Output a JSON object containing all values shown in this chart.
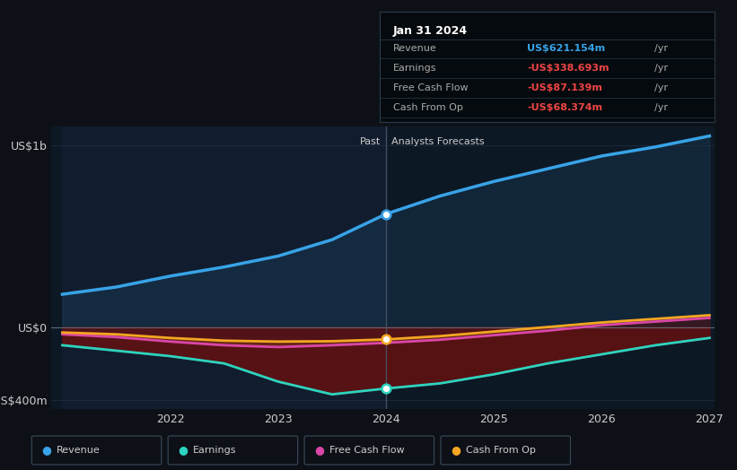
{
  "bg_color": "#0d1117",
  "years": [
    2021.0,
    2021.5,
    2022.0,
    2022.5,
    2023.0,
    2023.5,
    2024.0,
    2024.5,
    2025.0,
    2025.5,
    2026.0,
    2026.5,
    2027.0
  ],
  "revenue": [
    180,
    220,
    280,
    330,
    390,
    480,
    621,
    720,
    800,
    870,
    940,
    990,
    1050
  ],
  "earnings": [
    -100,
    -130,
    -160,
    -200,
    -300,
    -370,
    -338,
    -310,
    -260,
    -200,
    -150,
    -100,
    -60
  ],
  "free_cash_flow": [
    -40,
    -55,
    -80,
    -100,
    -110,
    -100,
    -87,
    -70,
    -45,
    -20,
    10,
    30,
    50
  ],
  "cash_from_op": [
    -30,
    -40,
    -60,
    -75,
    -80,
    -78,
    -68,
    -50,
    -25,
    0,
    25,
    45,
    65
  ],
  "split_year": 2024.0,
  "ylim": [
    -450,
    1100
  ],
  "yticks": [
    -400,
    0,
    1000
  ],
  "ytick_labels": [
    "-US$400m",
    "US$0",
    "US$1b"
  ],
  "xticks": [
    2022,
    2023,
    2024,
    2025,
    2026,
    2027
  ],
  "revenue_color": "#38a3e8",
  "earnings_color": "#2dd4bf",
  "fcf_color": "#d946a8",
  "cashop_color": "#f5a623",
  "tooltip_title": "Jan 31 2024",
  "tooltip_rows": [
    {
      "label": "Revenue",
      "value": "US$621.154m",
      "unit": "/yr",
      "color": "#38a3e8"
    },
    {
      "label": "Earnings",
      "value": "-US$338.693m",
      "unit": "/yr",
      "color": "#ef4444"
    },
    {
      "label": "Free Cash Flow",
      "value": "-US$87.139m",
      "unit": "/yr",
      "color": "#ef4444"
    },
    {
      "label": "Cash From Op",
      "value": "-US$68.374m",
      "unit": "/yr",
      "color": "#ef4444"
    }
  ],
  "legend_items": [
    {
      "label": "Revenue",
      "color": "#38a3e8"
    },
    {
      "label": "Earnings",
      "color": "#2dd4bf"
    },
    {
      "label": "Free Cash Flow",
      "color": "#d946a8"
    },
    {
      "label": "Cash From Op",
      "color": "#f5a623"
    }
  ],
  "past_label": "Past",
  "forecast_label": "Analysts Forecasts"
}
